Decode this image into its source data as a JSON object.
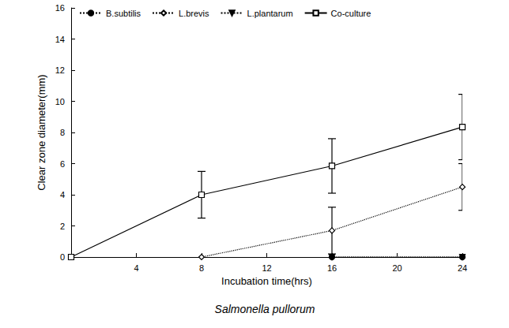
{
  "chart_data": {
    "type": "line",
    "title": "Salmonella pullorum",
    "x_label": "Incubation time(hrs)",
    "y_label": "Clear zone diameter(mm)",
    "x": [
      0,
      8,
      16,
      24
    ],
    "xlim": [
      0,
      24
    ],
    "xticks": [
      4,
      8,
      12,
      16,
      20,
      24
    ],
    "ylim": [
      0,
      16
    ],
    "yticks": [
      0,
      2,
      4,
      6,
      8,
      10,
      12,
      14,
      16
    ],
    "grid": false,
    "legend": "top",
    "series": [
      {
        "name": "B.subtilis",
        "color": "#000000",
        "marker": "circle",
        "line_style": "dotted",
        "values": [
          null,
          null,
          0,
          0
        ],
        "errors": [
          null,
          null,
          null,
          null
        ]
      },
      {
        "name": "L.brevis",
        "color": "#000000",
        "marker": "diamond-open",
        "line_style": "dotted",
        "values": [
          null,
          0,
          1.7,
          4.5
        ],
        "errors": [
          null,
          null,
          1.5,
          1.5
        ]
      },
      {
        "name": "L.plantarum",
        "color": "#000000",
        "marker": "triangle-down",
        "line_style": "dotted",
        "values": [
          null,
          null,
          0,
          0
        ],
        "errors": [
          null,
          null,
          null,
          null
        ]
      },
      {
        "name": "Co-culture",
        "color": "#000000",
        "marker": "square-open",
        "line_style": "solid",
        "values": [
          0,
          4.0,
          5.85,
          8.35
        ],
        "errors": [
          null,
          1.5,
          1.75,
          2.1
        ]
      }
    ]
  }
}
